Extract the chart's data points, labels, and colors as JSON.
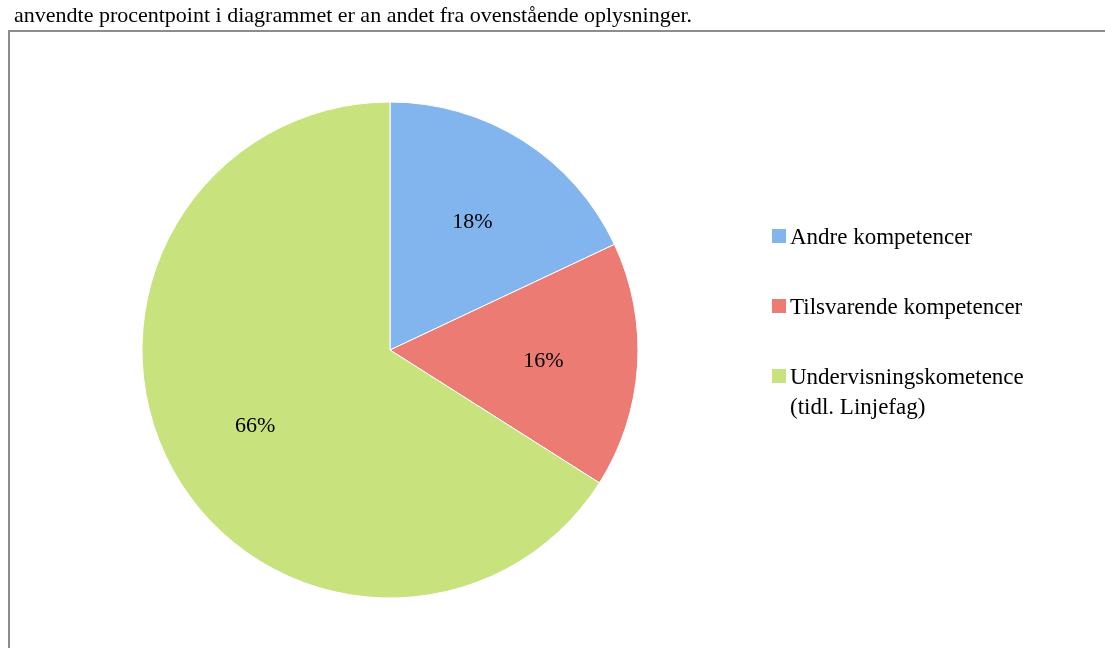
{
  "chart_data": {
    "type": "pie",
    "annotations": [
      "anvendte procentpoint i diagrammet er an andet fra ovenstående oplysninger."
    ],
    "categories": [
      "Andre kompetencer",
      "Tilsvarende kompetencer",
      "Undervisningskometence (tidl. Linjefag)"
    ],
    "values": [
      18,
      16,
      66
    ],
    "colors": [
      "#82b4ee",
      "#ec7b74",
      "#c8e27e"
    ],
    "value_labels": [
      "18%",
      "16%",
      "66%"
    ],
    "legend": "right"
  }
}
